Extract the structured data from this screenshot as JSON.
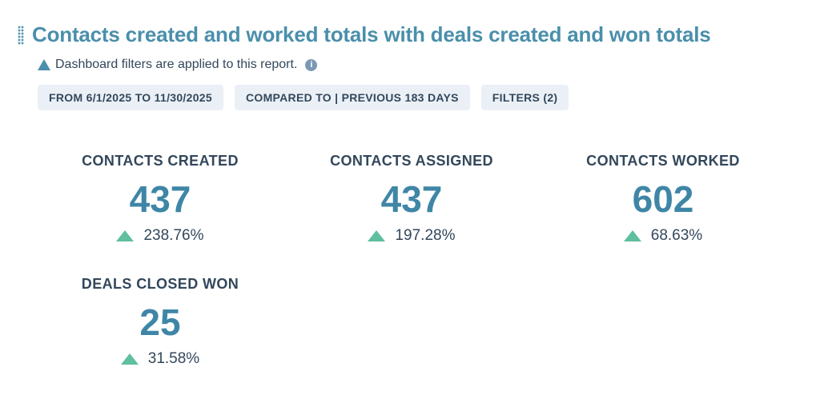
{
  "report": {
    "title": "Contacts created and worked totals with deals created and won totals",
    "note": "Dashboard filters are applied to this report.",
    "chips": [
      "FROM 6/1/2025 TO 11/30/2025",
      "COMPARED TO | PREVIOUS 183 DAYS",
      "FILTERS (2)"
    ]
  },
  "kpis": [
    {
      "label": "CONTACTS CREATED",
      "value": "437",
      "change": "238.76%",
      "direction": "up"
    },
    {
      "label": "CONTACTS ASSIGNED",
      "value": "437",
      "change": "197.28%",
      "direction": "up"
    },
    {
      "label": "CONTACTS WORKED",
      "value": "602",
      "change": "68.63%",
      "direction": "up"
    },
    {
      "label": "DEALS CLOSED WON",
      "value": "25",
      "change": "31.58%",
      "direction": "up"
    }
  ],
  "colors": {
    "accent": "#4a8fab",
    "up": "#5fbf9f",
    "text": "#33475b",
    "chip_bg": "#eaf0f6"
  }
}
